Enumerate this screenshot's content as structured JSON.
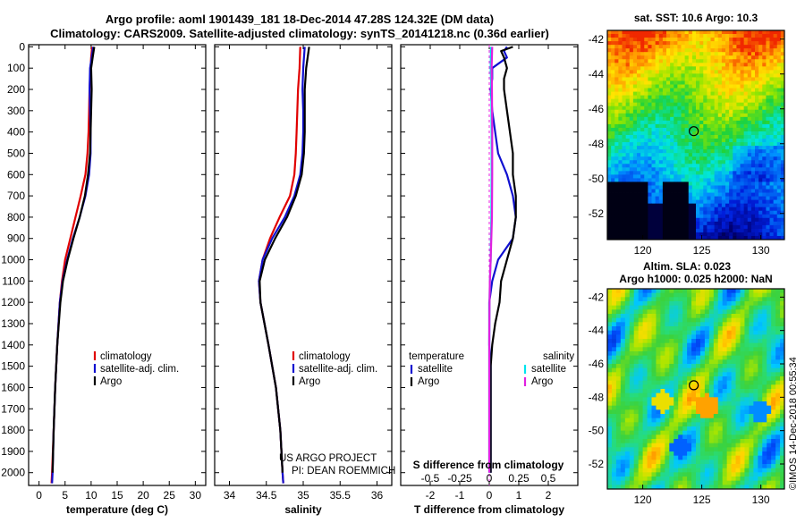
{
  "title_line1": "Argo profile: aoml 1901439_181 18-Dec-2014 47.28S 124.32E (DM data)",
  "title_line2": "Climatology: CARS2009. Satellite-adjusted climatology: synTS_20141218.nc (0.36d earlier)",
  "watermark": "©IMOS 14-Dec-2018 00:55:34",
  "colors": {
    "climatology": "#e00000",
    "satellite": "#1010d0",
    "argo": "#000000",
    "sal_satellite": "#00e5ee",
    "sal_argo": "#e020e0",
    "sal_clim": "#8080ff"
  },
  "chart_data": [
    {
      "type": "line",
      "id": "temperature",
      "xlabel": "temperature (deg C)",
      "xlim": [
        -2,
        32
      ],
      "ylim": [
        2060,
        -10
      ],
      "xticks": [
        "0",
        "5",
        "10",
        "15",
        "20",
        "25",
        "30"
      ],
      "xtick_values": [
        0,
        5,
        10,
        15,
        20,
        25,
        30
      ],
      "yticks": [
        "0",
        "100",
        "200",
        "300",
        "400",
        "500",
        "600",
        "700",
        "800",
        "900",
        "1000",
        "1100",
        "1200",
        "1300",
        "1400",
        "1500",
        "1600",
        "1700",
        "1800",
        "1900",
        "2000"
      ],
      "ytick_values": [
        0,
        100,
        200,
        300,
        400,
        500,
        600,
        700,
        800,
        900,
        1000,
        1100,
        1200,
        1300,
        1400,
        1500,
        1600,
        1700,
        1800,
        1900,
        2000
      ],
      "legend": [
        "climatology",
        "satellite-adj. clim.",
        "Argo"
      ],
      "series": [
        {
          "name": "climatology",
          "color": "#e00000",
          "depth": [
            0,
            50,
            100,
            200,
            300,
            400,
            500,
            600,
            700,
            800,
            900,
            1000,
            1100,
            1200,
            1400,
            1600,
            1800,
            2000,
            2050
          ],
          "values": [
            10.2,
            10.0,
            9.9,
            9.7,
            9.6,
            9.5,
            9.3,
            8.9,
            8.0,
            7.0,
            6.0,
            5.0,
            4.4,
            4.0,
            3.5,
            3.1,
            2.8,
            2.5,
            2.4
          ]
        },
        {
          "name": "satellite-adj. clim.",
          "color": "#1010d0",
          "depth": [
            0,
            50,
            100,
            200,
            300,
            400,
            500,
            600,
            700,
            800,
            900,
            1000,
            1100,
            1200,
            1400,
            1600,
            1800,
            2000,
            2050
          ],
          "values": [
            10.4,
            10.1,
            9.8,
            9.7,
            9.8,
            9.9,
            9.9,
            9.6,
            8.9,
            7.8,
            6.5,
            5.4,
            4.5,
            4.0,
            3.5,
            3.1,
            2.8,
            2.6,
            2.5
          ]
        },
        {
          "name": "Argo",
          "color": "#000000",
          "depth": [
            0,
            50,
            100,
            200,
            300,
            400,
            500,
            600,
            700,
            800,
            900,
            1000,
            1100,
            1200,
            1400,
            1600,
            1800,
            2000
          ],
          "values": [
            10.6,
            10.3,
            10.0,
            10.1,
            10.0,
            9.9,
            9.8,
            9.4,
            8.8,
            7.8,
            6.6,
            5.5,
            4.6,
            4.1,
            3.5,
            3.1,
            2.8,
            2.6
          ]
        }
      ]
    },
    {
      "type": "line",
      "id": "salinity",
      "xlabel": "salinity",
      "xlim": [
        33.8,
        36.2
      ],
      "ylim": [
        2060,
        -10
      ],
      "xticks": [
        "34",
        "34.5",
        "35",
        "35.5",
        "36"
      ],
      "xtick_values": [
        34,
        34.5,
        35,
        35.5,
        36
      ],
      "legend": [
        "climatology",
        "satellite-adj. clim.",
        "Argo"
      ],
      "annotation": [
        "US ARGO PROJECT",
        "PI: DEAN ROEMMICH"
      ],
      "series": [
        {
          "name": "climatology",
          "color": "#e00000",
          "depth": [
            0,
            100,
            200,
            300,
            400,
            500,
            600,
            700,
            800,
            900,
            1000,
            1100,
            1200,
            1400,
            1600,
            1800,
            2000,
            2050
          ],
          "values": [
            34.96,
            34.95,
            34.93,
            34.92,
            34.91,
            34.9,
            34.88,
            34.82,
            34.68,
            34.55,
            34.45,
            34.4,
            34.42,
            34.53,
            34.63,
            34.69,
            34.72,
            34.73
          ]
        },
        {
          "name": "satellite-adj. clim.",
          "color": "#1010d0",
          "depth": [
            0,
            100,
            200,
            300,
            400,
            500,
            600,
            700,
            800,
            900,
            1000,
            1100,
            1200,
            1400,
            1600,
            1800,
            2000,
            2050
          ],
          "values": [
            35.02,
            35.0,
            34.99,
            35.0,
            35.0,
            34.99,
            34.96,
            34.88,
            34.75,
            34.58,
            34.45,
            34.4,
            34.42,
            34.53,
            34.63,
            34.69,
            34.72,
            34.73
          ]
        },
        {
          "name": "Argo",
          "color": "#000000",
          "depth": [
            0,
            100,
            200,
            300,
            400,
            500,
            600,
            700,
            800,
            900,
            1000,
            1100,
            1200,
            1400,
            1600,
            1800,
            2000
          ],
          "values": [
            35.08,
            35.04,
            35.02,
            35.02,
            35.02,
            35.01,
            34.98,
            34.9,
            34.78,
            34.62,
            34.48,
            34.41,
            34.42,
            34.53,
            34.63,
            34.69,
            34.72
          ]
        }
      ]
    },
    {
      "type": "line",
      "id": "difference",
      "xlabel": "T difference from climatology",
      "xlabel2": "S difference from climatology",
      "xlim": [
        -3,
        3
      ],
      "ylim": [
        2060,
        -10
      ],
      "xticks": [
        "-2",
        "-1",
        "0",
        "1",
        "2"
      ],
      "xtick_values": [
        -2,
        -1,
        0,
        1,
        2
      ],
      "xticks2": [
        "-0.5",
        "-0.25",
        "0",
        "0.25",
        "0.5"
      ],
      "xtick2_values": [
        -0.5,
        -0.25,
        0,
        0.25,
        0.5
      ],
      "legend_temperature": {
        "title": "temperature",
        "items": [
          "satellite",
          "Argo"
        ]
      },
      "legend_salinity": {
        "title": "salinity",
        "items": [
          "satellite",
          "Argo"
        ]
      },
      "series": [
        {
          "name": "T satellite",
          "color": "#1010d0",
          "depth": [
            0,
            20,
            50,
            100,
            150,
            200,
            300,
            400,
            500,
            600,
            700,
            800,
            900,
            1000,
            1100,
            1200,
            1300,
            1400,
            1500,
            1600,
            1700,
            1800,
            1900,
            2000
          ],
          "values": [
            0.6,
            0.5,
            0.6,
            0.1,
            0.1,
            0.05,
            0.1,
            0.2,
            0.3,
            0.6,
            0.8,
            0.9,
            0.8,
            0.3,
            0.1,
            0.0,
            0.0,
            0.0,
            0.05,
            0.05,
            0.05,
            0.05,
            0.05,
            0.05
          ]
        },
        {
          "name": "T Argo",
          "color": "#000000",
          "depth": [
            0,
            20,
            50,
            100,
            150,
            200,
            300,
            400,
            500,
            600,
            700,
            800,
            900,
            1000,
            1100,
            1200,
            1300,
            1400,
            1500,
            1600,
            1700,
            1800,
            1900,
            2000
          ],
          "values": [
            0.8,
            0.4,
            0.5,
            0.6,
            0.5,
            0.5,
            0.6,
            0.7,
            0.8,
            0.8,
            0.9,
            0.9,
            0.8,
            0.6,
            0.4,
            0.35,
            0.2,
            0.1,
            0.05,
            0.05,
            0.05,
            0.05,
            0.05,
            0.05
          ]
        },
        {
          "name": "S satellite",
          "color": "#00e5ee",
          "depth": [
            0,
            100,
            200,
            400,
            600,
            800,
            1000,
            1100,
            1200,
            1400,
            1600,
            1800,
            2000
          ],
          "values": [
            0.06,
            0.05,
            0.07,
            0.08,
            0.08,
            0.07,
            0.05,
            0.02,
            0.01,
            0.0,
            0.0,
            0.0,
            0.0
          ]
        },
        {
          "name": "S Argo",
          "color": "#e020e0",
          "depth": [
            0,
            100,
            200,
            400,
            600,
            800,
            1000,
            1100,
            1200,
            1400,
            1600,
            1800,
            2000
          ],
          "values": [
            0.1,
            0.08,
            0.09,
            0.1,
            0.1,
            0.09,
            0.05,
            0.02,
            0.01,
            0.0,
            0.0,
            0.0,
            0.0
          ]
        }
      ]
    },
    {
      "type": "heatmap",
      "id": "sst_map",
      "title": "sat. SST: 10.6 Argo: 10.3",
      "xlim": [
        117,
        132
      ],
      "ylim": [
        -53.5,
        -41.5
      ],
      "xticks": [
        "120",
        "125",
        "130"
      ],
      "xtick_values": [
        120,
        125,
        130
      ],
      "yticks": [
        "-42",
        "-44",
        "-46",
        "-48",
        "-50",
        "-52"
      ],
      "ytick_values": [
        -42,
        -44,
        -46,
        -48,
        -50,
        -52
      ],
      "marker": {
        "lon": 124.32,
        "lat": -47.28
      }
    },
    {
      "type": "heatmap",
      "id": "sla_map",
      "title": "Altim. SLA: 0.023",
      "title2": "Argo h1000: 0.025 h2000: NaN",
      "xlim": [
        117,
        132
      ],
      "ylim": [
        -53.5,
        -41.5
      ],
      "xticks": [
        "120",
        "125",
        "130"
      ],
      "xtick_values": [
        120,
        125,
        130
      ],
      "yticks": [
        "-42",
        "-44",
        "-46",
        "-48",
        "-50",
        "-52"
      ],
      "ytick_values": [
        -42,
        -44,
        -46,
        -48,
        -50,
        -52
      ],
      "marker": {
        "lon": 124.32,
        "lat": -47.28
      }
    }
  ]
}
